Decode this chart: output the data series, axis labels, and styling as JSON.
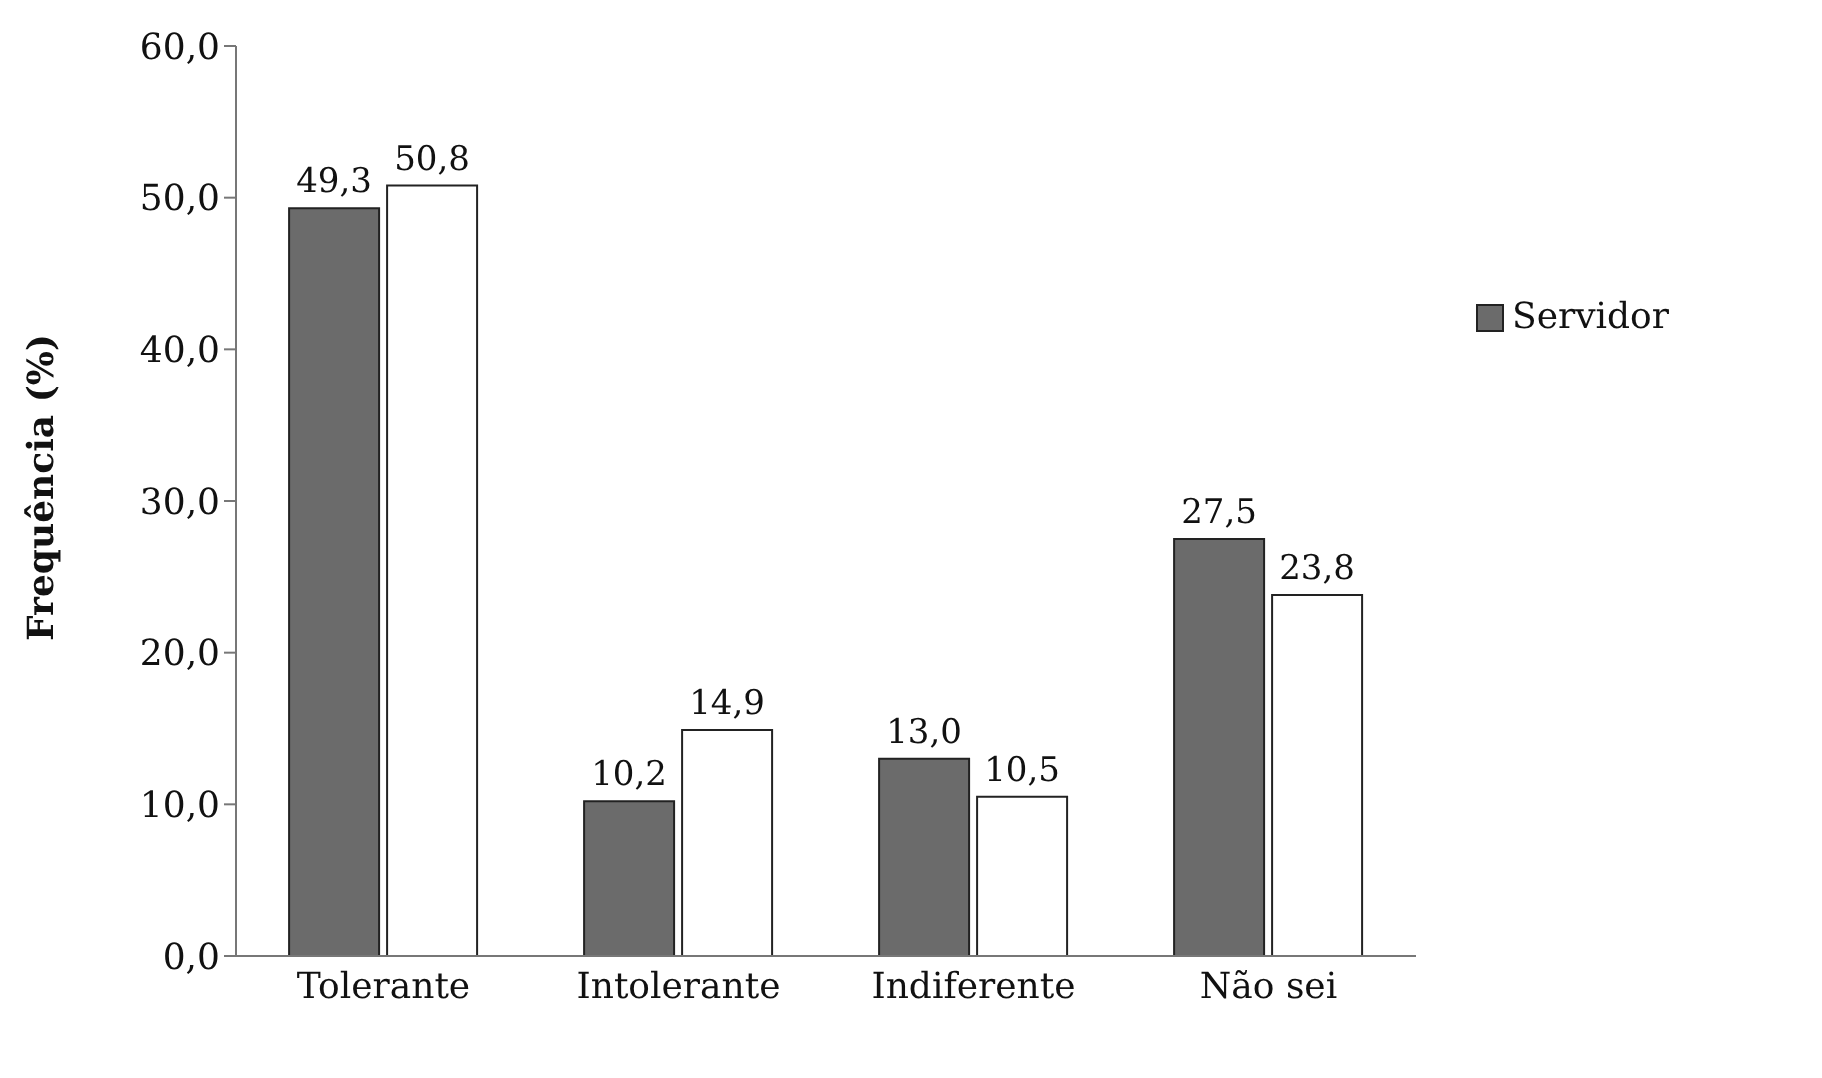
{
  "chart_data": {
    "type": "bar",
    "ylabel": "Frequência (%)",
    "categories": [
      "Tolerante",
      "Intolerante",
      "Indiferente",
      "Não sei"
    ],
    "series": [
      {
        "name": "Servidor",
        "color": "#6b6b6b",
        "values": [
          49.3,
          10.2,
          13.0,
          27.5
        ],
        "value_labels": [
          "49,3",
          "10,2",
          "13,0",
          "27,5"
        ]
      },
      {
        "color": "#ffffff",
        "values": [
          50.8,
          14.9,
          10.5,
          23.8
        ],
        "value_labels": [
          "50,8",
          "14,9",
          "10,5",
          "23,8"
        ]
      }
    ],
    "ylim": [
      0,
      60
    ],
    "yticks": [
      {
        "value": 0,
        "label": "0,0"
      },
      {
        "value": 10,
        "label": "10,0"
      },
      {
        "value": 20,
        "label": "20,0"
      },
      {
        "value": 30,
        "label": "30,0"
      },
      {
        "value": 40,
        "label": "40,0"
      },
      {
        "value": 50,
        "label": "50,0"
      },
      {
        "value": 60,
        "label": "60,0"
      }
    ],
    "grid": false,
    "legend": "right"
  }
}
